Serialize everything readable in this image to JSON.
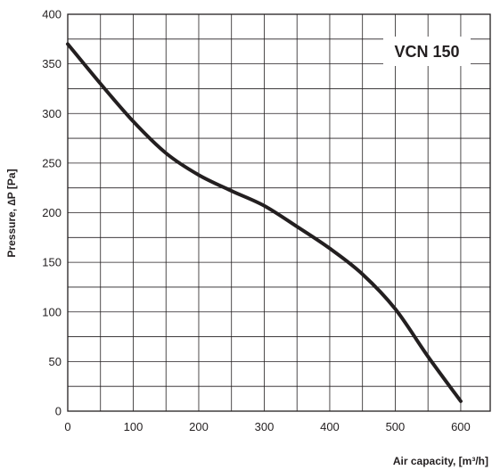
{
  "chart_data": {
    "type": "line",
    "title": "VCN 150",
    "xlabel": "Air capacity, [m³/h]",
    "ylabel": "Pressure, ∆P [Pa]",
    "xlim": [
      0,
      645
    ],
    "ylim": [
      0,
      400
    ],
    "x_ticks": [
      0,
      100,
      200,
      300,
      400,
      500,
      600
    ],
    "y_ticks": [
      0,
      50,
      100,
      150,
      200,
      250,
      300,
      350,
      400
    ],
    "x_grid_step": 50,
    "y_grid_step": 25,
    "grid": true,
    "series": [
      {
        "color": "#231f20",
        "x": [
          0,
          50,
          100,
          150,
          200,
          250,
          300,
          350,
          400,
          450,
          500,
          550,
          600
        ],
        "y": [
          370,
          330,
          292,
          260,
          238,
          222,
          207,
          186,
          164,
          138,
          103,
          55,
          10
        ]
      }
    ]
  }
}
